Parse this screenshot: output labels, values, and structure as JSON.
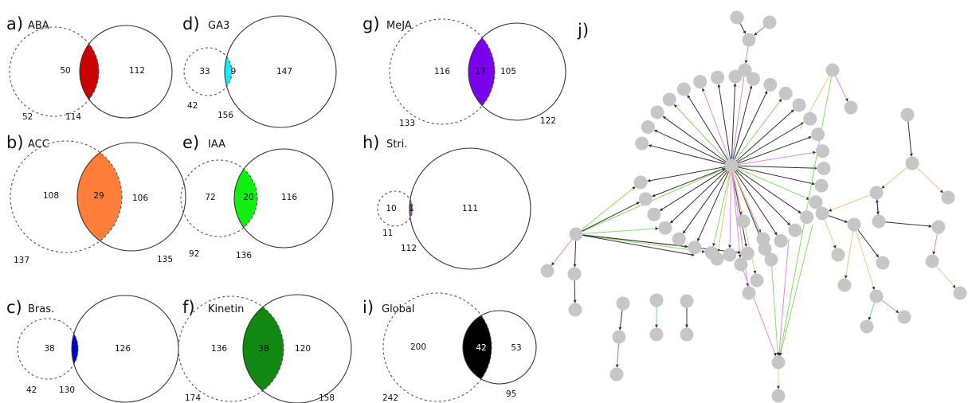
{
  "figure": {
    "panels": [
      {
        "id": "a",
        "letter": "a)",
        "name": "ABA",
        "small_only": "50",
        "overlap": "",
        "big_only": "112",
        "small_total": "52",
        "big_total": "114",
        "color": "#cc0000"
      },
      {
        "id": "b",
        "letter": "b)",
        "name": "ACC",
        "small_only": "108",
        "overlap": "29",
        "big_only": "106",
        "small_total": "137",
        "big_total": "135",
        "color": "#ff7f3a"
      },
      {
        "id": "c",
        "letter": "c)",
        "name": "Bras.",
        "small_only": "38",
        "overlap": "",
        "big_only": "126",
        "small_total": "42",
        "big_total": "130",
        "color": "#0000dd"
      },
      {
        "id": "d",
        "letter": "d)",
        "name": "GA3",
        "small_only": "33",
        "overlap": "9",
        "big_only": "147",
        "small_total": "42",
        "big_total": "156",
        "color": "#1ae8f4"
      },
      {
        "id": "e",
        "letter": "e)",
        "name": "IAA",
        "small_only": "72",
        "overlap": "20",
        "big_only": "116",
        "small_total": "92",
        "big_total": "136",
        "color": "#11ee11"
      },
      {
        "id": "f",
        "letter": "f)",
        "name": "Kinetin",
        "small_only": "136",
        "overlap": "38",
        "big_only": "120",
        "small_total": "174",
        "big_total": "158",
        "color": "#118811"
      },
      {
        "id": "g",
        "letter": "g)",
        "name": "MeJA",
        "small_only": "116",
        "overlap": "17",
        "big_only": "105",
        "small_total": "133",
        "big_total": "122",
        "color": "#7a00ee"
      },
      {
        "id": "h",
        "letter": "h)",
        "name": "Stri.",
        "small_only": "10",
        "overlap": "1",
        "big_only": "111",
        "small_total": "11",
        "big_total": "112",
        "color": "#bb44cc"
      },
      {
        "id": "i",
        "letter": "i)",
        "name": "Global",
        "small_only": "200",
        "overlap": "42",
        "big_only": "53",
        "small_total": "242",
        "big_total": "95",
        "color": "#000000"
      }
    ],
    "network_label": "j)",
    "network": {
      "node_color": "#c6c6c6",
      "edge_colors": [
        "#333333",
        "#88dd66",
        "#dd88ee",
        "#f2c48a",
        "#66cccc",
        "#dd6688"
      ]
    }
  }
}
